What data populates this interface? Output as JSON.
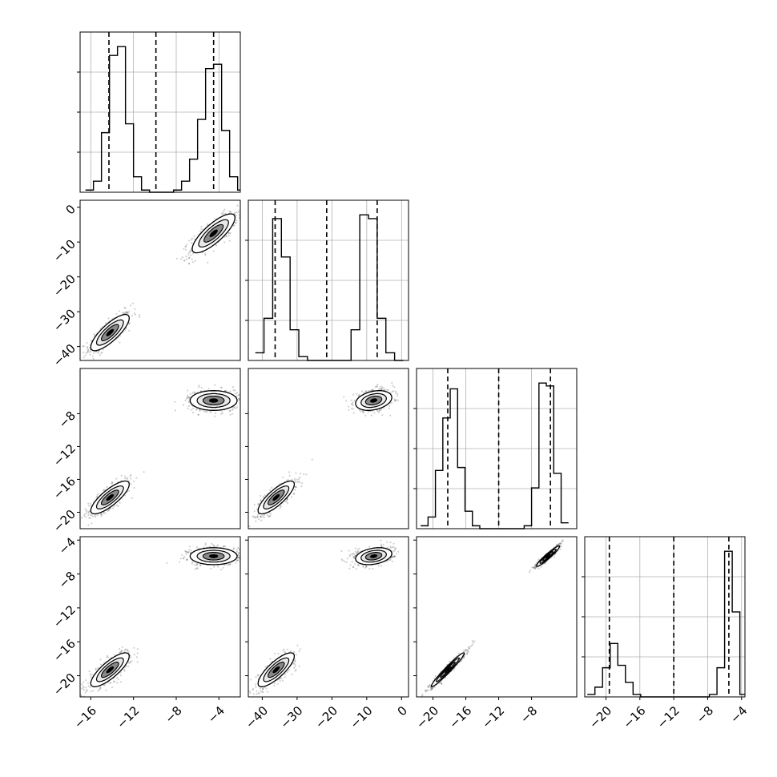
{
  "chart_data": {
    "type": "corner",
    "grid": true,
    "title": "",
    "parameters": [
      {
        "range": [
          -17,
          -2
        ],
        "ticks": [
          "-16",
          "-12",
          "-8",
          "-4"
        ],
        "tick_values": [
          -16,
          -12,
          -8,
          -4
        ],
        "quantiles": [
          -14.3,
          -9.9,
          -4.5
        ]
      },
      {
        "range": [
          -44,
          2
        ],
        "ticks": [
          "-40",
          "-30",
          "-20",
          "-10",
          "0"
        ],
        "tick_values": [
          -40,
          -30,
          -20,
          -10,
          0
        ],
        "quantiles": [
          -36.3,
          -21.5,
          -7.0
        ]
      },
      {
        "range": [
          -22,
          -2.5
        ],
        "ticks": [
          "-20",
          "-16",
          "-12",
          "-8"
        ],
        "tick_values": [
          -20,
          -16,
          -12,
          -8
        ],
        "quantiles": [
          -18.2,
          -12.0,
          -5.7
        ]
      },
      {
        "range": [
          -22.5,
          -3.6
        ],
        "ticks": [
          "-20",
          "-16",
          "-12",
          "-8",
          "-4"
        ],
        "tick_values": [
          -20,
          -16,
          -12,
          -8,
          -4
        ],
        "quantiles": [
          -19.6,
          -12.0,
          -5.5
        ]
      }
    ],
    "histograms": [
      {
        "param": 0,
        "bins": [
          -16.5,
          -15.75,
          -15,
          -14.25,
          -13.5,
          -12.75,
          -12,
          -11.25,
          -10.5,
          -9.75,
          -9,
          -8.25,
          -7.5,
          -6.75,
          -6,
          -5.25,
          -4.5,
          -3.75,
          -3,
          -2.25
        ],
        "counts": [
          1,
          5,
          27,
          62,
          66,
          31,
          7,
          1,
          0,
          0,
          0,
          1,
          5,
          15,
          33,
          56,
          58,
          28,
          7,
          1
        ]
      },
      {
        "param": 1,
        "bins": [
          -42,
          -39.5,
          -37,
          -34.5,
          -32,
          -29.5,
          -27,
          -24.5,
          -22,
          -19.5,
          -17,
          -14.5,
          -12,
          -9.5,
          -7,
          -4.5,
          -2
        ],
        "counts": [
          2,
          11,
          37,
          27,
          8,
          1,
          0,
          0,
          0,
          0,
          0,
          8,
          38,
          37,
          11,
          2,
          0
        ],
        "bin_width": 2.5
      },
      {
        "param": 2,
        "bins": [
          -21.5,
          -20.6,
          -19.7,
          -18.8,
          -17.9,
          -17,
          -16.1,
          -15.2,
          -14.3,
          -13.4,
          -12.5,
          -11.6,
          -10.7,
          -9.8,
          -8.9,
          -8,
          -7.1,
          -6.2,
          -5.3,
          -4.4
        ],
        "counts": [
          1,
          4,
          20,
          38,
          48,
          21,
          6,
          1,
          0,
          0,
          0,
          0,
          0,
          0,
          1,
          14,
          50,
          49,
          19,
          2
        ],
        "bin_width": 0.9
      },
      {
        "param": 3,
        "bins": [
          -22.2,
          -21.3,
          -20.4,
          -19.5,
          -18.6,
          -17.7,
          -16.8,
          -15.9,
          -15,
          -14.1,
          -13.2,
          -12.3,
          -11.4,
          -10.5,
          -9.6,
          -8.7,
          -7.8,
          -6.9,
          -6,
          -5.1,
          -4.2
        ],
        "counts": [
          1,
          4,
          12,
          22,
          13,
          6,
          1,
          0,
          0,
          0,
          0,
          0,
          0,
          0,
          0,
          0,
          1,
          12,
          60,
          35,
          1
        ],
        "bin_width": 0.9
      }
    ],
    "scatter_pairs": [
      {
        "x_param": 0,
        "y_param": 1,
        "clusters": [
          {
            "cx": -14.2,
            "cy": -36,
            "sx": 0.9,
            "sy": 2.6,
            "rho": 0.8
          },
          {
            "cx": -4.5,
            "cy": -7.5,
            "sx": 1.0,
            "sy": 2.8,
            "rho": 0.8
          }
        ]
      },
      {
        "x_param": 0,
        "y_param": 2,
        "clusters": [
          {
            "cx": -14.2,
            "cy": -18.2,
            "sx": 0.9,
            "sy": 1.0,
            "rho": 0.8
          },
          {
            "cx": -4.5,
            "cy": -6.4,
            "sx": 1.1,
            "sy": 0.6,
            "rho": 0.0
          }
        ]
      },
      {
        "x_param": 1,
        "y_param": 2,
        "clusters": [
          {
            "cx": -36,
            "cy": -18.2,
            "sx": 2.6,
            "sy": 1.0,
            "rho": 0.8
          },
          {
            "cx": -8,
            "cy": -6.4,
            "sx": 2.6,
            "sy": 0.6,
            "rho": 0.3
          }
        ]
      },
      {
        "x_param": 0,
        "y_param": 3,
        "clusters": [
          {
            "cx": -14.2,
            "cy": -19.3,
            "sx": 0.9,
            "sy": 1.0,
            "rho": 0.8
          },
          {
            "cx": -4.5,
            "cy": -5.9,
            "sx": 1.1,
            "sy": 0.5,
            "rho": 0.0
          }
        ]
      },
      {
        "x_param": 1,
        "y_param": 3,
        "clusters": [
          {
            "cx": -36,
            "cy": -19.3,
            "sx": 2.6,
            "sy": 1.0,
            "rho": 0.8
          },
          {
            "cx": -8,
            "cy": -5.9,
            "sx": 2.6,
            "sy": 0.5,
            "rho": 0.3
          }
        ]
      },
      {
        "x_param": 2,
        "y_param": 3,
        "clusters": [
          {
            "cx": -18.2,
            "cy": -19.3,
            "sx": 1.0,
            "sy": 1.0,
            "rho": 0.97
          },
          {
            "cx": -6.0,
            "cy": -5.9,
            "sx": 0.7,
            "sy": 0.6,
            "rho": 0.95
          }
        ]
      }
    ]
  }
}
